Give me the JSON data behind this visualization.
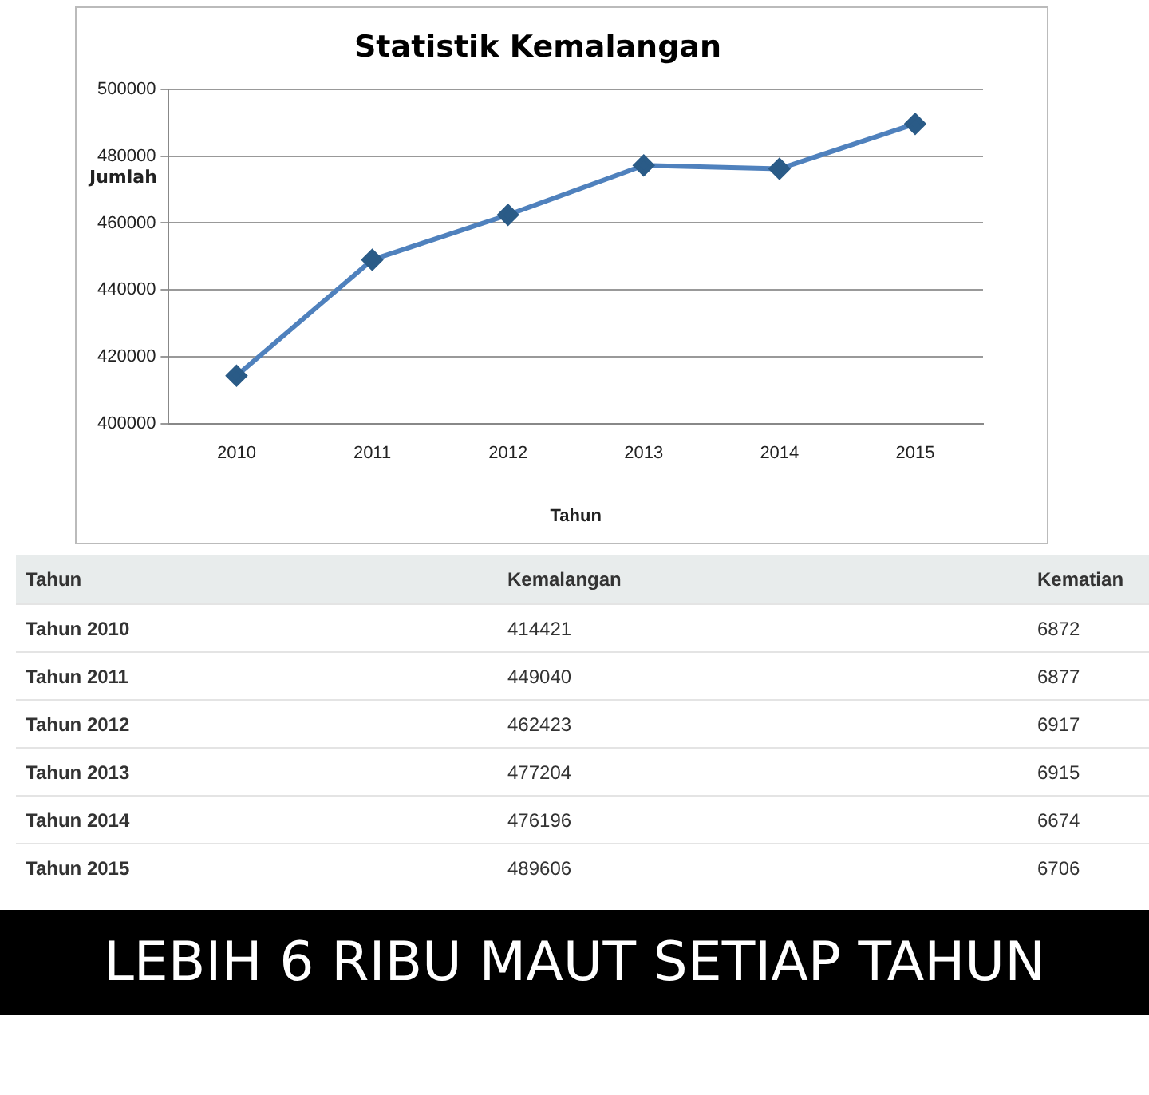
{
  "chart_data": [
    {
      "type": "line",
      "title": "Statistik Kemalangan",
      "xlabel": "Tahun",
      "ylabel": "Jumlah",
      "categories": [
        "2010",
        "2011",
        "2012",
        "2013",
        "2014",
        "2015"
      ],
      "series": [
        {
          "color": "#4f81bd",
          "values": [
            414421,
            449040,
            462423,
            477204,
            476196,
            489606
          ]
        }
      ],
      "ylim": [
        400000,
        500000
      ],
      "yticks": [
        400000,
        420000,
        440000,
        460000,
        480000,
        500000
      ],
      "grid": "y",
      "legend": false,
      "marker": "diamond",
      "line_style": "solid"
    },
    {
      "type": "other",
      "xlabel": "Tahun",
      "categories": [
        "Tahun 2010",
        "Tahun 2011",
        "Tahun 2012",
        "Tahun 2013",
        "Tahun 2014",
        "Tahun 2015"
      ],
      "series": [
        {
          "name": "Kemalangan",
          "values": [
            414421,
            449040,
            462423,
            477204,
            476196,
            489606
          ]
        },
        {
          "name": "Kematian",
          "values": [
            6872,
            6877,
            6917,
            6915,
            6674,
            6706
          ]
        }
      ],
      "data_labels": true,
      "annotations": [
        "LEBIH 6 RIBU MAUT SETIAP TAHUN"
      ]
    }
  ]
}
